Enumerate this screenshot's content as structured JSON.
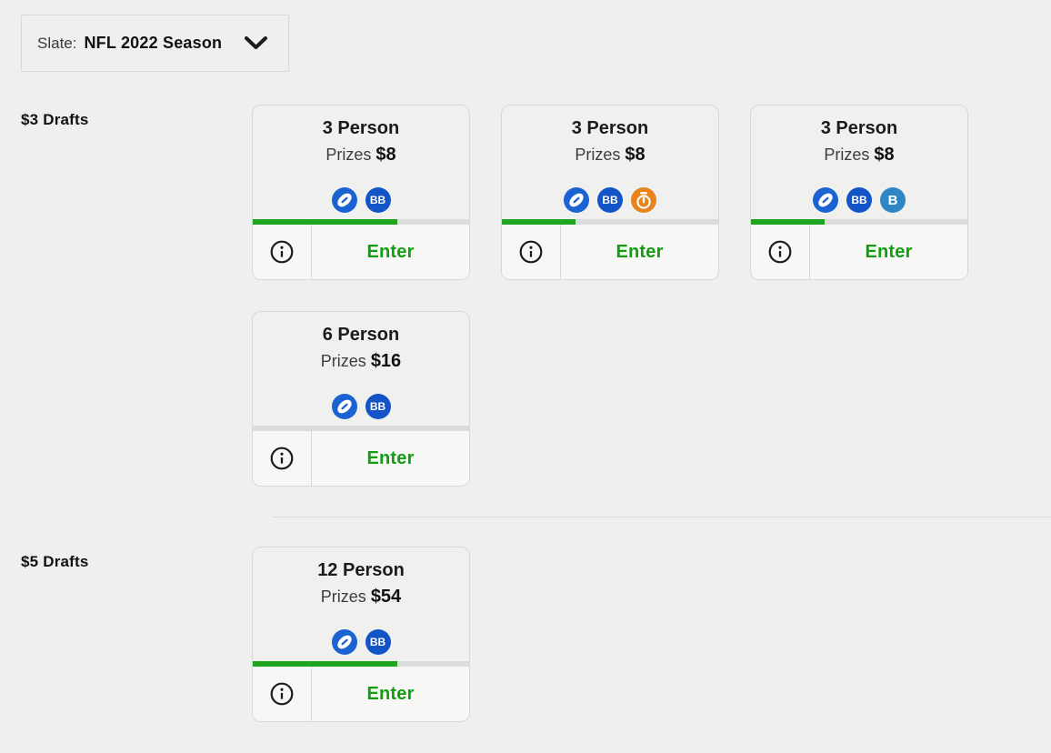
{
  "slate_selector": {
    "label": "Slate:",
    "value": "NFL 2022 Season"
  },
  "sections": [
    {
      "label": "$3 Drafts",
      "cards": [
        {
          "title": "3 Person",
          "prizes_label": "Prizes",
          "prizes_value": "$8",
          "icons": [
            "football",
            "bb"
          ],
          "fill_percent": 67,
          "enter_label": "Enter"
        },
        {
          "title": "3 Person",
          "prizes_label": "Prizes",
          "prizes_value": "$8",
          "icons": [
            "football",
            "bb",
            "stopwatch"
          ],
          "fill_percent": 34,
          "enter_label": "Enter"
        },
        {
          "title": "3 Person",
          "prizes_label": "Prizes",
          "prizes_value": "$8",
          "icons": [
            "football",
            "bb",
            "bonus-b"
          ],
          "fill_percent": 34,
          "enter_label": "Enter"
        },
        {
          "title": "6 Person",
          "prizes_label": "Prizes",
          "prizes_value": "$16",
          "icons": [
            "football",
            "bb"
          ],
          "fill_percent": 0,
          "enter_label": "Enter"
        }
      ]
    },
    {
      "label": "$5 Drafts",
      "cards": [
        {
          "title": "12 Person",
          "prizes_label": "Prizes",
          "prizes_value": "$54",
          "icons": [
            "football",
            "bb"
          ],
          "fill_percent": 67,
          "enter_label": "Enter"
        }
      ]
    }
  ],
  "colors": {
    "football_blue": "#1c63d2",
    "bb_blue": "#1355c6",
    "bonus_blue": "#2e86c4",
    "stopwatch_orange": "#e8831c",
    "progress_green": "#1ea41e",
    "enter_green": "#109f10",
    "progress_track": "#dcdcdc"
  }
}
